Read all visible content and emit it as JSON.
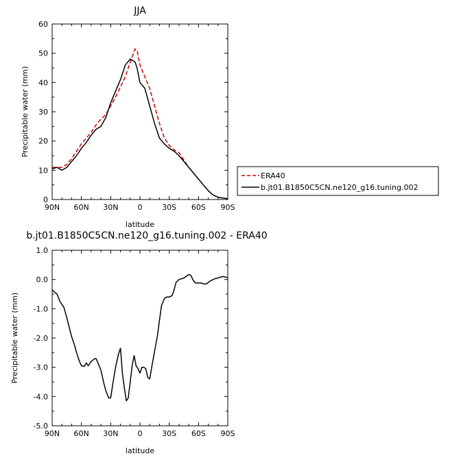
{
  "figure": {
    "title": "JJA",
    "legend": {
      "placement": "right"
    }
  },
  "colors": {
    "era40": "#cc0000",
    "model": "#000000",
    "axes": "#000000"
  },
  "chart_data": [
    {
      "type": "line",
      "title": "JJA",
      "xlabel": "latitude",
      "ylabel": "Precipitable water (mm)",
      "xlim": [
        90,
        -90
      ],
      "ylim": [
        0,
        60
      ],
      "xticks": [
        90,
        60,
        30,
        0,
        -30,
        -60,
        -90
      ],
      "xtick_labels": [
        "90N",
        "60N",
        "30N",
        "0",
        "30S",
        "60S",
        "90S"
      ],
      "yticks": [
        0,
        10,
        20,
        30,
        40,
        50,
        60
      ],
      "ytick_labels": [
        "0",
        "10",
        "20",
        "30",
        "40",
        "50",
        "60"
      ],
      "grid": false,
      "legend_placement": "right",
      "series": [
        {
          "name": "ERA40",
          "color": "#cc0000",
          "dash": true,
          "x": [
            90,
            85,
            80,
            75,
            70,
            65,
            60,
            55,
            50,
            45,
            40,
            35,
            30,
            25,
            20,
            15,
            10,
            5,
            3,
            0,
            -5,
            -10,
            -15,
            -20,
            -25,
            -30,
            -35,
            -40,
            -45,
            -50,
            -55,
            -60,
            -65,
            -70,
            -75,
            -80,
            -85,
            -90
          ],
          "y": [
            11,
            11,
            11,
            12,
            14,
            16.5,
            19,
            21,
            23,
            25.5,
            27.5,
            29,
            32,
            35,
            38.5,
            42,
            47,
            51.5,
            51,
            46,
            42,
            38,
            32,
            26,
            21,
            18.5,
            17,
            16,
            13.5,
            11,
            9,
            7,
            5,
            3,
            1.5,
            0.8,
            0.5,
            0.3
          ]
        },
        {
          "name": "b.jt01.B1850C5CN.ne120_g16.tuning.002",
          "color": "#000000",
          "dash": false,
          "x": [
            90,
            85,
            80,
            75,
            70,
            65,
            60,
            55,
            50,
            45,
            40,
            35,
            30,
            25,
            20,
            15,
            10,
            5,
            3,
            0,
            -5,
            -10,
            -15,
            -20,
            -25,
            -30,
            -35,
            -40,
            -45,
            -50,
            -55,
            -60,
            -65,
            -70,
            -75,
            -80,
            -85,
            -90
          ],
          "y": [
            10.5,
            11,
            10,
            11,
            13,
            15,
            17.5,
            19.5,
            22,
            24,
            25,
            28,
            33,
            37,
            41,
            46,
            48,
            47,
            45,
            40,
            38,
            32,
            26,
            21,
            19,
            17.5,
            16.5,
            15,
            13,
            11,
            9,
            7,
            5,
            3,
            1.5,
            0.8,
            0.5,
            0.3
          ]
        }
      ]
    },
    {
      "type": "line",
      "title": "b.jt01.B1850C5CN.ne120_g16.tuning.002 - ERA40",
      "xlabel": "latitude",
      "ylabel": "Precipitable water (mm)",
      "xlim": [
        90,
        -90
      ],
      "ylim": [
        -5,
        1
      ],
      "xticks": [
        90,
        60,
        30,
        0,
        -30,
        -60,
        -90
      ],
      "xtick_labels": [
        "90N",
        "60N",
        "30N",
        "0",
        "30S",
        "60S",
        "90S"
      ],
      "yticks": [
        1,
        0,
        -1,
        -2,
        -3,
        -4,
        -5
      ],
      "ytick_labels": [
        "1.0",
        "0.0",
        "-1.0",
        "-2.0",
        "-3.0",
        "-4.0",
        "-5.0"
      ],
      "grid": false,
      "series": [
        {
          "name": "",
          "color": "#000000",
          "x": [
            90,
            87,
            85,
            82,
            80,
            78,
            75,
            72,
            70,
            67,
            65,
            62,
            60,
            57,
            55,
            53,
            50,
            47,
            45,
            43,
            40,
            37,
            35,
            32,
            30,
            28,
            25,
            22,
            20,
            18,
            16,
            14,
            12,
            10,
            8,
            6,
            4,
            2,
            0,
            -2,
            -4,
            -6,
            -8,
            -10,
            -12,
            -15,
            -18,
            -20,
            -22,
            -25,
            -27,
            -30,
            -33,
            -35,
            -37,
            -40,
            -42,
            -45,
            -48,
            -50,
            -52,
            -55,
            -57,
            -60,
            -63,
            -65,
            -68,
            -70,
            -72,
            -75,
            -77,
            -80,
            -82,
            -85,
            -88,
            -90
          ],
          "y": [
            -0.35,
            -0.45,
            -0.5,
            -0.75,
            -0.85,
            -0.95,
            -1.3,
            -1.7,
            -1.95,
            -2.25,
            -2.5,
            -2.8,
            -2.95,
            -2.97,
            -2.85,
            -2.95,
            -2.8,
            -2.72,
            -2.7,
            -2.85,
            -3.1,
            -3.55,
            -3.8,
            -4.05,
            -4.05,
            -3.6,
            -3.0,
            -2.55,
            -2.35,
            -3.2,
            -3.7,
            -4.15,
            -4.05,
            -3.5,
            -2.95,
            -2.6,
            -2.95,
            -3.05,
            -3.2,
            -3.0,
            -3.0,
            -3.05,
            -3.35,
            -3.4,
            -3.0,
            -2.45,
            -1.9,
            -1.4,
            -0.9,
            -0.65,
            -0.6,
            -0.6,
            -0.55,
            -0.35,
            -0.1,
            0.0,
            0.02,
            0.05,
            0.12,
            0.17,
            0.15,
            -0.05,
            -0.12,
            -0.12,
            -0.12,
            -0.15,
            -0.15,
            -0.1,
            -0.05,
            0.0,
            0.03,
            0.05,
            0.08,
            0.1,
            0.08,
            0.07
          ]
        }
      ]
    }
  ]
}
